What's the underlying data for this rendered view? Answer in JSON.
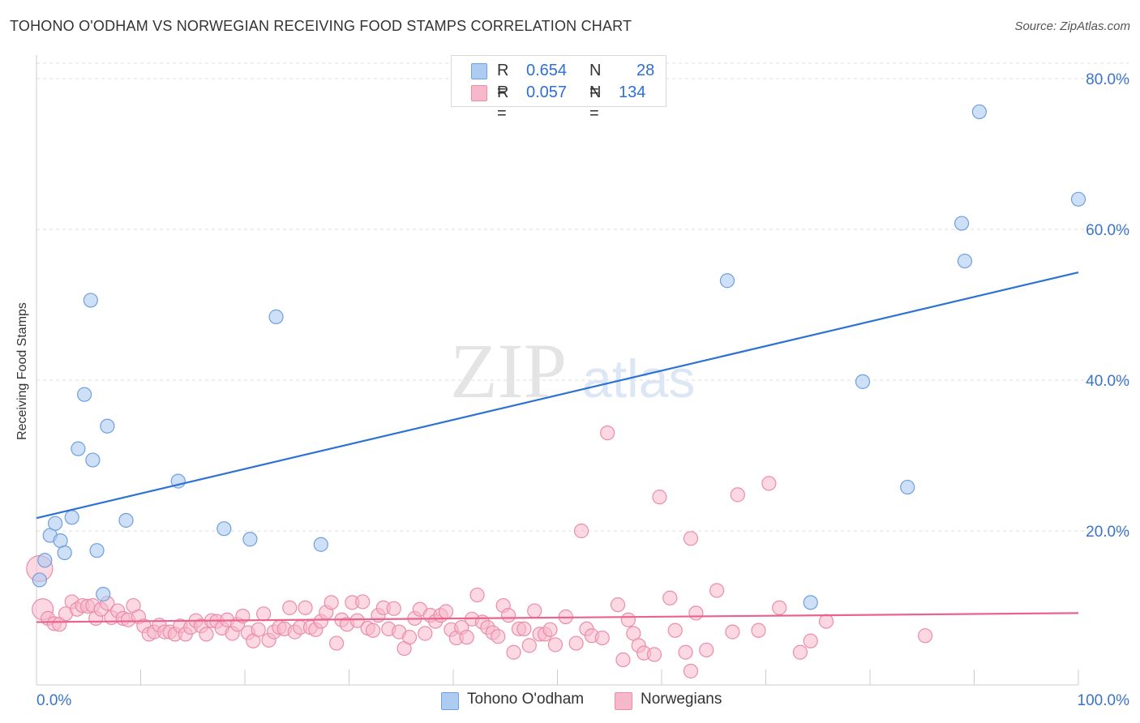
{
  "header": {
    "title": "TOHONO O'ODHAM VS NORWEGIAN RECEIVING FOOD STAMPS CORRELATION CHART",
    "source": "Source: ZipAtlas.com"
  },
  "watermark": {
    "zip": "ZIP",
    "atlas": "atlas"
  },
  "legend": {
    "rows": [
      {
        "r_label": "R =",
        "r_value": "0.654",
        "n_label": "N =",
        "n_value": "28",
        "color": "#aecbf1"
      },
      {
        "r_label": "R =",
        "r_value": "0.057",
        "n_label": "N =",
        "n_value": "134",
        "color": "#f7b8cb"
      }
    ]
  },
  "bottom_legend": {
    "series1": "Tohono O'odham",
    "series2": "Norwegians"
  },
  "colors": {
    "blue_fill": "#aecbf1",
    "blue_stroke": "#6f9fdc",
    "blue_line": "#2c72d4",
    "pink_fill": "#f7b8cb",
    "pink_stroke": "#ec8cab",
    "pink_line": "#e8648d",
    "tick_label": "#3a74c8",
    "grid": "#dddddd"
  },
  "chart_data": {
    "type": "scatter",
    "title": "TOHONO O'ODHAM VS NORWEGIAN RECEIVING FOOD STAMPS CORRELATION CHART",
    "xlabel": "",
    "ylabel": "Receiving Food Stamps",
    "xlim": [
      0,
      100
    ],
    "ylim": [
      0,
      84
    ],
    "x_tick_labels": [
      "0.0%",
      "100.0%"
    ],
    "y_ticks": [
      20,
      40,
      60,
      80
    ],
    "y_tick_labels": [
      "20.0%",
      "40.0%",
      "60.0%",
      "80.0%"
    ],
    "grid": true,
    "legend_position": "top-center",
    "series": [
      {
        "name": "Tohono O'odham",
        "color": "#aecbf1",
        "trend": {
          "x": [
            0,
            100
          ],
          "y": [
            21.7,
            54.3
          ]
        },
        "points": [
          [
            0.3,
            13.5
          ],
          [
            0.8,
            16.1
          ],
          [
            1.3,
            19.4
          ],
          [
            1.8,
            21.0
          ],
          [
            2.3,
            18.7
          ],
          [
            2.7,
            17.1
          ],
          [
            3.4,
            21.8
          ],
          [
            4.0,
            30.9
          ],
          [
            4.6,
            38.1
          ],
          [
            5.2,
            50.6
          ],
          [
            5.4,
            29.4
          ],
          [
            5.8,
            17.4
          ],
          [
            6.4,
            11.6
          ],
          [
            6.8,
            33.9
          ],
          [
            8.6,
            21.4
          ],
          [
            13.6,
            26.6
          ],
          [
            18.0,
            20.3
          ],
          [
            20.5,
            18.9
          ],
          [
            23.0,
            48.4
          ],
          [
            27.3,
            18.2
          ],
          [
            66.3,
            53.2
          ],
          [
            74.3,
            10.5
          ],
          [
            79.3,
            39.8
          ],
          [
            83.6,
            25.8
          ],
          [
            88.8,
            60.8
          ],
          [
            89.1,
            55.8
          ],
          [
            90.5,
            75.6
          ],
          [
            100.0,
            64.0
          ]
        ]
      },
      {
        "name": "Norwegians",
        "color": "#f7b8cb",
        "trend": {
          "x": [
            0,
            100
          ],
          "y": [
            7.9,
            9.1
          ]
        },
        "points": [
          [
            0.3,
            15.0
          ],
          [
            0.6,
            9.6
          ],
          [
            1.1,
            8.4
          ],
          [
            1.7,
            7.7
          ],
          [
            2.2,
            7.6
          ],
          [
            2.8,
            9.0
          ],
          [
            3.4,
            10.6
          ],
          [
            3.9,
            9.6
          ],
          [
            4.4,
            10.1
          ],
          [
            4.9,
            10.0
          ],
          [
            5.4,
            10.1
          ],
          [
            5.7,
            8.4
          ],
          [
            6.2,
            9.6
          ],
          [
            6.8,
            10.4
          ],
          [
            7.2,
            8.5
          ],
          [
            7.8,
            9.4
          ],
          [
            8.3,
            8.4
          ],
          [
            8.8,
            8.2
          ],
          [
            9.3,
            10.1
          ],
          [
            9.8,
            8.6
          ],
          [
            10.3,
            7.4
          ],
          [
            10.8,
            6.3
          ],
          [
            11.3,
            6.6
          ],
          [
            11.8,
            7.5
          ],
          [
            12.3,
            6.6
          ],
          [
            12.8,
            6.6
          ],
          [
            13.3,
            6.3
          ],
          [
            13.8,
            7.4
          ],
          [
            14.3,
            6.3
          ],
          [
            14.8,
            7.2
          ],
          [
            15.3,
            8.1
          ],
          [
            15.8,
            7.4
          ],
          [
            16.3,
            6.3
          ],
          [
            16.8,
            8.1
          ],
          [
            17.3,
            8.0
          ],
          [
            17.8,
            7.1
          ],
          [
            18.3,
            8.2
          ],
          [
            18.8,
            6.4
          ],
          [
            19.3,
            7.6
          ],
          [
            19.8,
            8.7
          ],
          [
            20.3,
            6.5
          ],
          [
            20.8,
            5.4
          ],
          [
            21.3,
            6.9
          ],
          [
            21.8,
            9.0
          ],
          [
            22.3,
            5.5
          ],
          [
            22.8,
            6.6
          ],
          [
            23.3,
            7.2
          ],
          [
            23.8,
            7.0
          ],
          [
            24.3,
            9.8
          ],
          [
            24.8,
            6.6
          ],
          [
            25.3,
            7.2
          ],
          [
            25.8,
            9.8
          ],
          [
            26.3,
            7.2
          ],
          [
            26.8,
            6.9
          ],
          [
            27.3,
            8.0
          ],
          [
            27.8,
            9.2
          ],
          [
            28.3,
            10.5
          ],
          [
            28.8,
            5.1
          ],
          [
            29.3,
            8.2
          ],
          [
            29.8,
            7.6
          ],
          [
            30.3,
            10.5
          ],
          [
            30.8,
            8.1
          ],
          [
            31.3,
            10.6
          ],
          [
            31.8,
            7.1
          ],
          [
            32.3,
            6.8
          ],
          [
            32.8,
            8.8
          ],
          [
            33.3,
            9.8
          ],
          [
            33.8,
            7.0
          ],
          [
            34.3,
            9.7
          ],
          [
            34.8,
            6.6
          ],
          [
            35.3,
            4.4
          ],
          [
            35.8,
            5.9
          ],
          [
            36.3,
            8.4
          ],
          [
            36.8,
            9.6
          ],
          [
            37.3,
            6.4
          ],
          [
            37.8,
            8.8
          ],
          [
            38.3,
            8.0
          ],
          [
            38.8,
            8.8
          ],
          [
            39.3,
            9.3
          ],
          [
            39.8,
            6.9
          ],
          [
            40.3,
            5.8
          ],
          [
            40.8,
            7.2
          ],
          [
            41.3,
            5.9
          ],
          [
            41.8,
            8.3
          ],
          [
            42.3,
            11.5
          ],
          [
            42.8,
            7.9
          ],
          [
            43.3,
            7.2
          ],
          [
            43.8,
            6.5
          ],
          [
            44.3,
            6.0
          ],
          [
            44.8,
            10.1
          ],
          [
            45.3,
            8.8
          ],
          [
            45.8,
            3.9
          ],
          [
            46.3,
            7.0
          ],
          [
            46.8,
            7.0
          ],
          [
            47.3,
            4.8
          ],
          [
            47.8,
            9.4
          ],
          [
            48.3,
            6.3
          ],
          [
            48.8,
            6.3
          ],
          [
            49.3,
            6.9
          ],
          [
            49.8,
            4.9
          ],
          [
            50.8,
            8.6
          ],
          [
            51.8,
            5.1
          ],
          [
            52.3,
            20.0
          ],
          [
            52.8,
            7.0
          ],
          [
            53.3,
            6.1
          ],
          [
            54.3,
            5.8
          ],
          [
            54.8,
            33.0
          ],
          [
            55.8,
            10.2
          ],
          [
            56.3,
            2.9
          ],
          [
            56.8,
            8.2
          ],
          [
            57.3,
            6.4
          ],
          [
            57.8,
            4.8
          ],
          [
            58.3,
            3.8
          ],
          [
            59.3,
            3.6
          ],
          [
            59.8,
            24.5
          ],
          [
            60.8,
            11.1
          ],
          [
            61.3,
            6.8
          ],
          [
            62.3,
            3.9
          ],
          [
            62.8,
            19.0
          ],
          [
            63.3,
            9.1
          ],
          [
            64.3,
            4.2
          ],
          [
            65.3,
            12.1
          ],
          [
            66.8,
            6.6
          ],
          [
            67.3,
            24.8
          ],
          [
            69.3,
            6.8
          ],
          [
            70.3,
            26.3
          ],
          [
            71.3,
            9.8
          ],
          [
            73.3,
            3.9
          ],
          [
            74.3,
            5.4
          ],
          [
            75.8,
            8.0
          ],
          [
            85.3,
            6.1
          ],
          [
            62.8,
            1.4
          ]
        ]
      }
    ]
  }
}
